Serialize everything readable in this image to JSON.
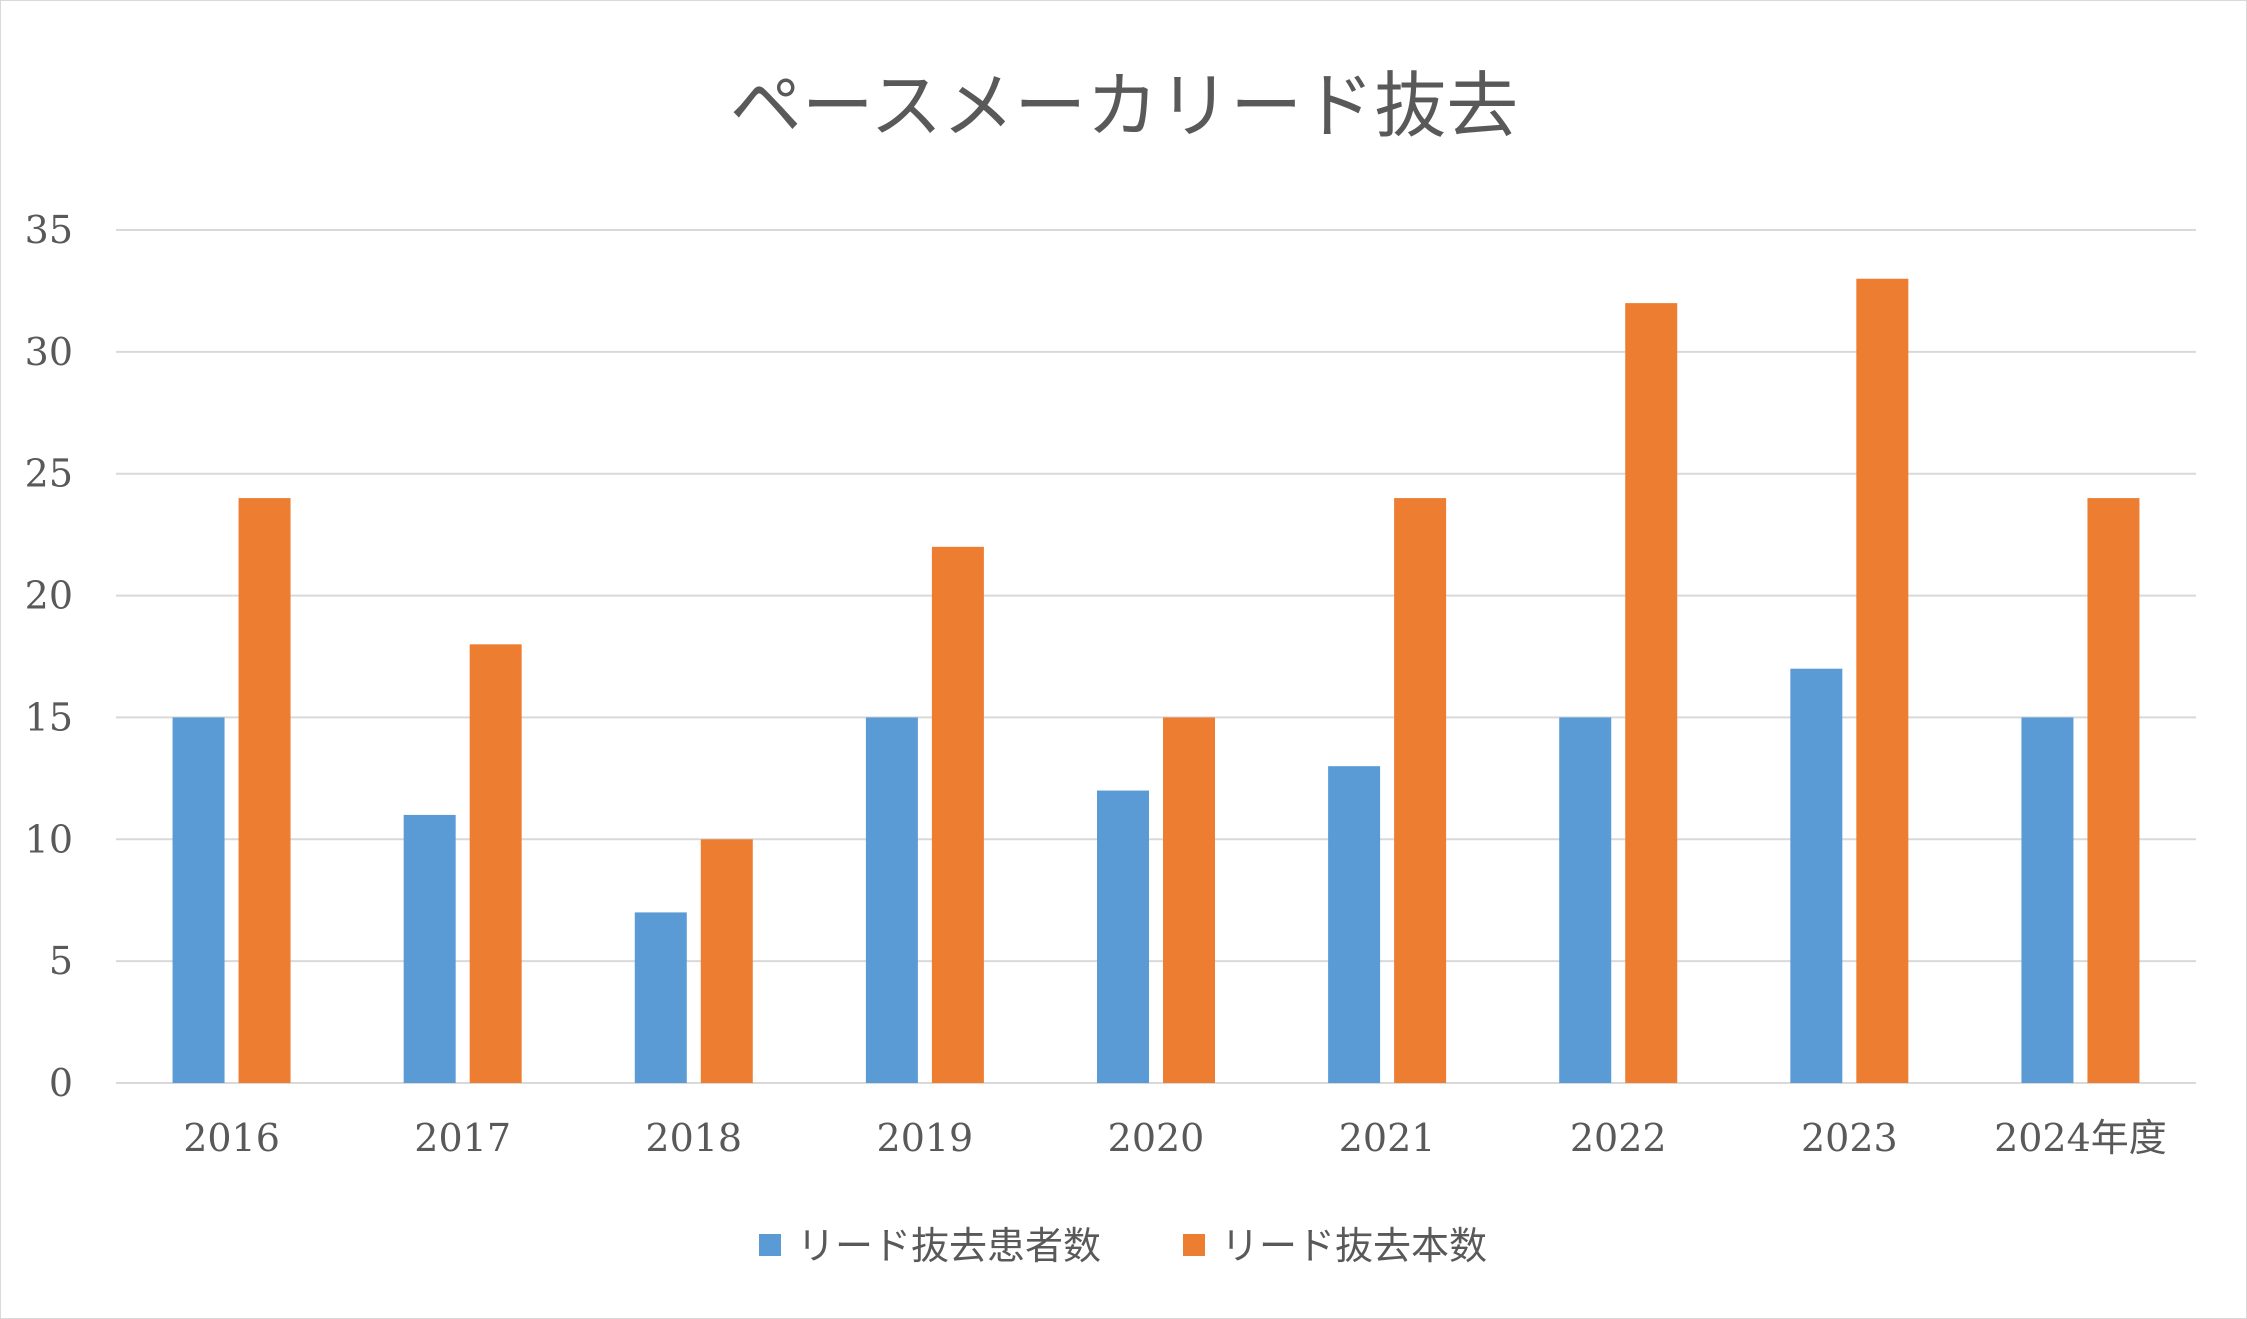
{
  "chart_data": {
    "type": "bar",
    "title": "ペースメーカリード抜去",
    "categories": [
      "2016",
      "2017",
      "2018",
      "2019",
      "2020",
      "2021",
      "2022",
      "2023",
      "2024年度"
    ],
    "series": [
      {
        "name": "リード抜去患者数",
        "color": "#5b9bd5",
        "values": [
          15,
          11,
          7,
          15,
          12,
          13,
          15,
          17,
          15
        ]
      },
      {
        "name": "リード抜去本数",
        "color": "#ed7d31",
        "values": [
          24,
          18,
          10,
          22,
          15,
          24,
          32,
          33,
          24
        ]
      }
    ],
    "ylim": [
      0,
      35
    ],
    "yticks": [
      0,
      5,
      10,
      15,
      20,
      25,
      30,
      35
    ],
    "xlabel": "",
    "ylabel": "",
    "grid": true,
    "legend_position": "bottom",
    "colors": {
      "text": "#595959",
      "grid": "#d9d9d9",
      "frame": "#d9d9d9"
    }
  }
}
